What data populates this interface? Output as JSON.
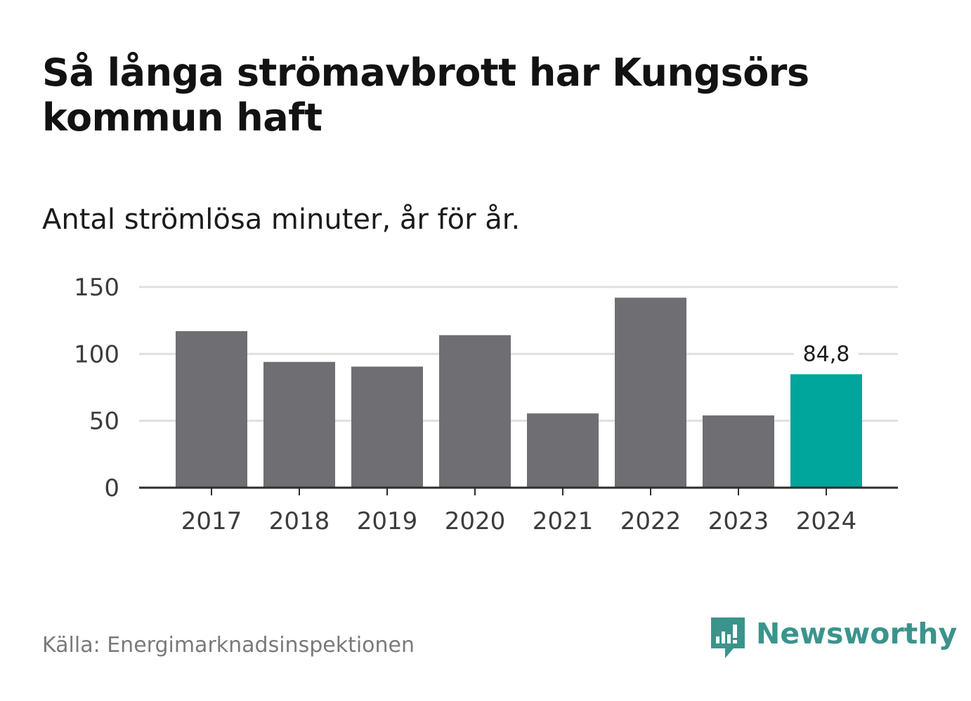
{
  "title": "Så långa strömavbrott har Kungsörs kommun haft",
  "subtitle": "Antal strömlösa minuter, år för år.",
  "source": "Källa: Energimarknadsinspektionen",
  "brand": {
    "name": "Newsworthy",
    "icon": "newsworthy-logo-icon",
    "color": "#3a948c"
  },
  "colors": {
    "bar": "#6e6e73",
    "highlight": "#00a69b",
    "grid": "#e0e0e0",
    "axis": "#2d2d2d"
  },
  "chart_data": {
    "type": "bar",
    "title": "Så långa strömavbrott har Kungsörs kommun haft",
    "subtitle": "Antal strömlösa minuter, år för år.",
    "xlabel": "",
    "ylabel": "",
    "categories": [
      "2017",
      "2018",
      "2019",
      "2020",
      "2021",
      "2022",
      "2023",
      "2024"
    ],
    "values": [
      117,
      94,
      90.5,
      114,
      55.5,
      142,
      54,
      84.8
    ],
    "highlight_index": 7,
    "data_labels": [
      {
        "index": 7,
        "text": "84,8"
      }
    ],
    "ylim": [
      0,
      150
    ],
    "yticks": [
      0,
      50,
      100,
      150
    ],
    "ytick_labels": [
      "0",
      "50",
      "100",
      "150"
    ],
    "grid": true
  }
}
